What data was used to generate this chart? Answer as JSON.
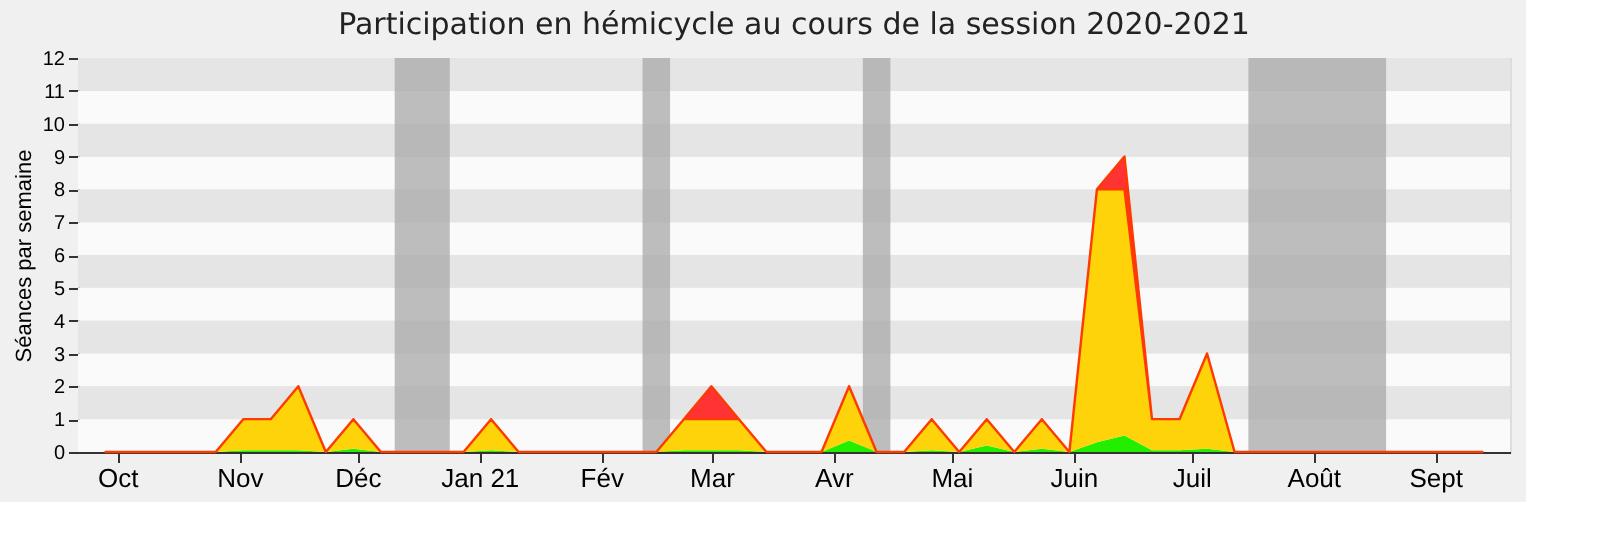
{
  "chart_data": {
    "type": "area",
    "title": "Participation en hémicycle au cours de la session 2020-2021",
    "ylabel": "Séances par semaine",
    "stacked": true,
    "grid": "y",
    "x": [
      "2020-09-28",
      "2020-10-05",
      "2020-10-12",
      "2020-10-19",
      "2020-10-26",
      "2020-11-02",
      "2020-11-09",
      "2020-11-16",
      "2020-11-23",
      "2020-11-30",
      "2020-12-07",
      "2020-12-14",
      "2020-12-21",
      "2020-12-28",
      "2021-01-04",
      "2021-01-11",
      "2021-01-18",
      "2021-01-25",
      "2021-02-01",
      "2021-02-08",
      "2021-02-15",
      "2021-02-22",
      "2021-03-01",
      "2021-03-08",
      "2021-03-15",
      "2021-03-22",
      "2021-03-29",
      "2021-04-05",
      "2021-04-12",
      "2021-04-19",
      "2021-04-26",
      "2021-05-03",
      "2021-05-10",
      "2021-05-17",
      "2021-05-24",
      "2021-05-31",
      "2021-06-07",
      "2021-06-14",
      "2021-06-21",
      "2021-06-28",
      "2021-07-05",
      "2021-07-12",
      "2021-07-19",
      "2021-07-26",
      "2021-08-02",
      "2021-08-09",
      "2021-08-16",
      "2021-08-23",
      "2021-08-30",
      "2021-09-06",
      "2021-09-13"
    ],
    "series": [
      {
        "color": "#22ee00",
        "values": [
          0,
          0,
          0,
          0,
          0,
          0.05,
          0.05,
          0.05,
          0,
          0.1,
          0,
          0,
          0,
          0,
          0.05,
          0,
          0,
          0,
          0,
          0,
          0,
          0.05,
          0.05,
          0.05,
          0,
          0,
          0,
          0.35,
          0,
          0,
          0.05,
          0,
          0.2,
          0,
          0.1,
          0,
          0.3,
          0.5,
          0.05,
          0.05,
          0.1,
          0,
          0,
          0,
          0,
          0,
          0,
          0,
          0,
          0,
          0
        ]
      },
      {
        "color": "#ffd30a",
        "values": [
          0,
          0,
          0,
          0,
          0,
          0.95,
          0.95,
          1.95,
          0,
          0.9,
          0,
          0,
          0,
          0,
          0.95,
          0,
          0,
          0,
          0,
          0,
          0,
          0.95,
          0.95,
          0.95,
          0,
          0,
          0,
          1.65,
          0,
          0,
          0.95,
          0,
          0.8,
          0,
          0.9,
          0,
          7.7,
          7.5,
          0.95,
          0.95,
          2.9,
          0,
          0,
          0,
          0,
          0,
          0,
          0,
          0,
          0,
          0
        ]
      },
      {
        "color": "#ff3333",
        "values": [
          0,
          0,
          0,
          0,
          0,
          0,
          0,
          0,
          0,
          0,
          0,
          0,
          0,
          0,
          0,
          0,
          0,
          0,
          0,
          0,
          0,
          0,
          1,
          0,
          0,
          0,
          0,
          0,
          0,
          0,
          0,
          0,
          0,
          0,
          0,
          0,
          0,
          1,
          0,
          0,
          0,
          0,
          0,
          0,
          0,
          0,
          0,
          0,
          0,
          0,
          0
        ]
      }
    ],
    "xlim": [
      "2020-09-21",
      "2021-09-20"
    ],
    "xticks": [
      {
        "value": "2020-10-01",
        "label": "Oct"
      },
      {
        "value": "2020-11-01",
        "label": "Nov"
      },
      {
        "value": "2020-12-01",
        "label": "Déc"
      },
      {
        "value": "2021-01-01",
        "label": "Jan 21"
      },
      {
        "value": "2021-02-01",
        "label": "Fév"
      },
      {
        "value": "2021-03-01",
        "label": "Mar"
      },
      {
        "value": "2021-04-01",
        "label": "Avr"
      },
      {
        "value": "2021-05-01",
        "label": "Mai"
      },
      {
        "value": "2021-06-01",
        "label": "Juin"
      },
      {
        "value": "2021-07-01",
        "label": "Juil"
      },
      {
        "value": "2021-08-01",
        "label": "Août"
      },
      {
        "value": "2021-09-01",
        "label": "Sept"
      }
    ],
    "ylim": [
      0,
      12
    ],
    "yticks": [
      0,
      1,
      2,
      3,
      4,
      5,
      6,
      7,
      8,
      9,
      10,
      11,
      12
    ],
    "bands": [
      {
        "axis": "x",
        "from": "2020-12-10T12:00",
        "to": "2020-12-24T12:00",
        "color": "#a8a8a8"
      },
      {
        "axis": "x",
        "from": "2021-02-11T12:00",
        "to": "2021-02-18T12:00",
        "color": "#a8a8a8"
      },
      {
        "axis": "x",
        "from": "2021-04-08T12:00",
        "to": "2021-04-15T12:00",
        "color": "#a8a8a8"
      },
      {
        "axis": "x",
        "from": "2021-07-15T12:00",
        "to": "2021-08-19T12:00",
        "color": "#a8a8a8"
      }
    ]
  }
}
